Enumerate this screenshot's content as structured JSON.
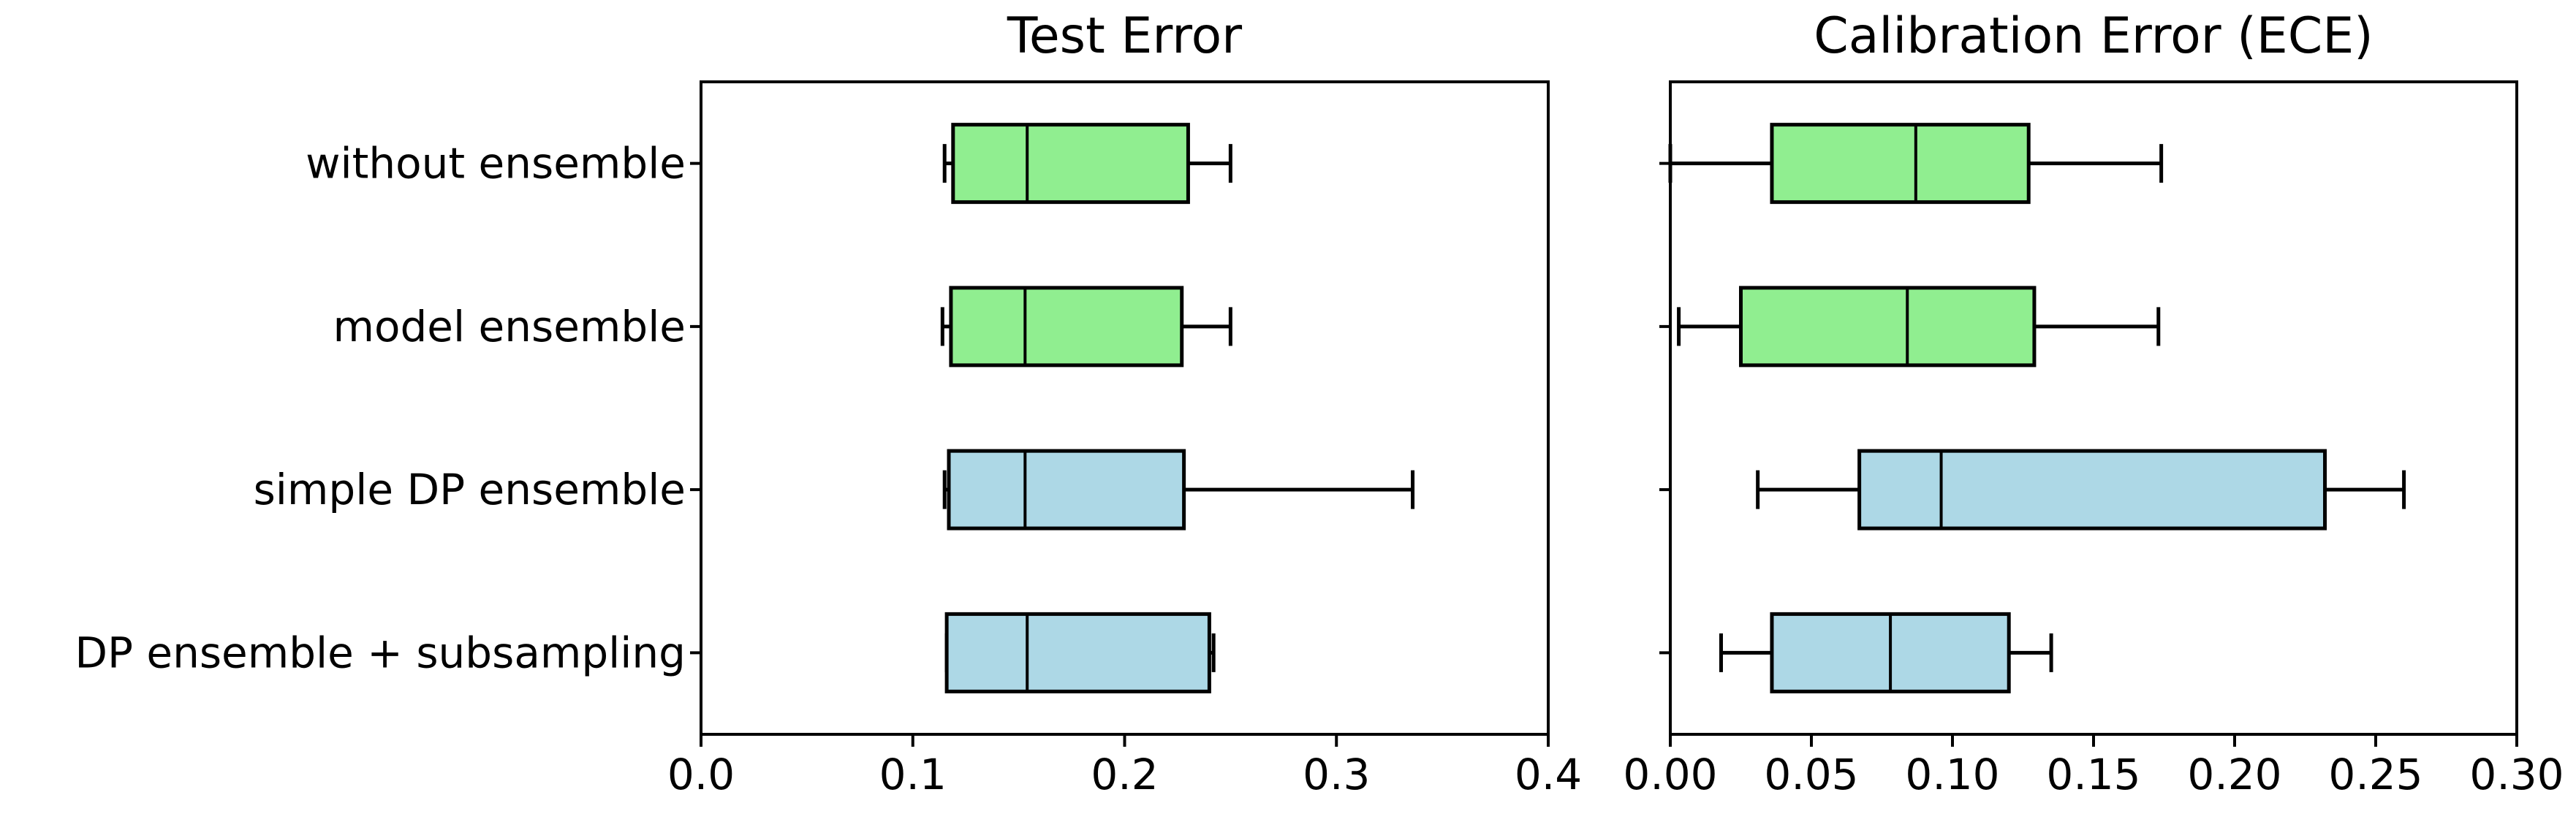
{
  "figure": {
    "background": "#ffffff",
    "text_color": "#000000"
  },
  "colors": {
    "green_box": "#90EE90",
    "blue_box": "#ADD8E6",
    "edge": "#000000"
  },
  "chart_data": [
    {
      "type": "boxplot",
      "orientation": "horizontal",
      "title": "Test Error",
      "xlabel": "",
      "ylabel": "",
      "grid": false,
      "legend": null,
      "xlim": [
        0.0,
        0.4
      ],
      "xticks": [
        "0.0",
        "0.1",
        "0.2",
        "0.3",
        "0.4"
      ],
      "xtick_values": [
        0.0,
        0.1,
        0.2,
        0.3,
        0.4
      ],
      "categories": [
        "without ensemble",
        "model ensemble",
        "simple DP ensemble",
        "DP ensemble + subsampling"
      ],
      "boxes": [
        {
          "category": "without ensemble",
          "whislo": 0.115,
          "q1": 0.119,
          "med": 0.154,
          "q3": 0.23,
          "whishi": 0.25,
          "color": "#90EE90"
        },
        {
          "category": "model ensemble",
          "whislo": 0.114,
          "q1": 0.118,
          "med": 0.153,
          "q3": 0.227,
          "whishi": 0.25,
          "color": "#90EE90"
        },
        {
          "category": "simple DP ensemble",
          "whislo": 0.115,
          "q1": 0.117,
          "med": 0.153,
          "q3": 0.228,
          "whishi": 0.336,
          "color": "#ADD8E6"
        },
        {
          "category": "DP ensemble + subsampling",
          "whislo": 0.116,
          "q1": 0.116,
          "med": 0.154,
          "q3": 0.24,
          "whishi": 0.242,
          "color": "#ADD8E6"
        }
      ]
    },
    {
      "type": "boxplot",
      "orientation": "horizontal",
      "title": "Calibration Error (ECE)",
      "xlabel": "",
      "ylabel": "",
      "grid": false,
      "legend": null,
      "xlim": [
        0.0,
        0.3
      ],
      "xticks": [
        "0.00",
        "0.05",
        "0.10",
        "0.15",
        "0.20",
        "0.25",
        "0.30"
      ],
      "xtick_values": [
        0.0,
        0.05,
        0.1,
        0.15,
        0.2,
        0.25,
        0.3
      ],
      "categories": [
        "without ensemble",
        "model ensemble",
        "simple DP ensemble",
        "DP ensemble + subsampling"
      ],
      "boxes": [
        {
          "category": "without ensemble",
          "whislo": 0.0,
          "q1": 0.036,
          "med": 0.087,
          "q3": 0.127,
          "whishi": 0.174,
          "color": "#90EE90"
        },
        {
          "category": "model ensemble",
          "whislo": 0.003,
          "q1": 0.025,
          "med": 0.084,
          "q3": 0.129,
          "whishi": 0.173,
          "color": "#90EE90"
        },
        {
          "category": "simple DP ensemble",
          "whislo": 0.031,
          "q1": 0.067,
          "med": 0.096,
          "q3": 0.232,
          "whishi": 0.26,
          "color": "#ADD8E6"
        },
        {
          "category": "DP ensemble + subsampling",
          "whislo": 0.018,
          "q1": 0.036,
          "med": 0.078,
          "q3": 0.12,
          "whishi": 0.135,
          "color": "#ADD8E6"
        }
      ]
    }
  ]
}
